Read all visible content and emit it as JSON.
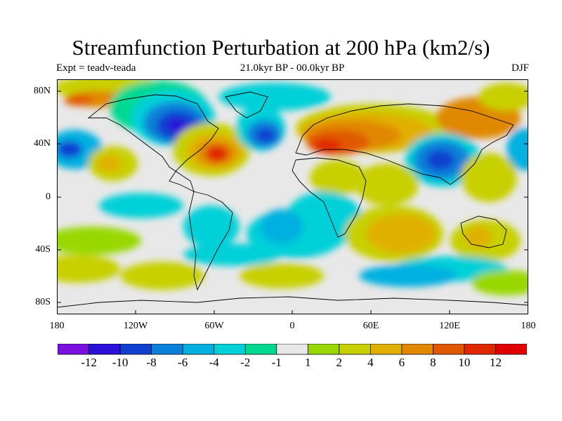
{
  "title": "Streamfunction Perturbation at 200 hPa (km2/s)",
  "expt_label": "Expt = teadv-teada",
  "period_label": "21.0kyr BP - 00.0kyr BP",
  "season_label": "DJF",
  "y_ticks": [
    "80N",
    "40N",
    "0",
    "40S",
    "80S"
  ],
  "x_ticks": [
    "180",
    "120W",
    "60W",
    "0",
    "60E",
    "120E",
    "180"
  ],
  "colorbar": {
    "labels": [
      "-12",
      "-10",
      "-8",
      "-6",
      "-4",
      "-2",
      "-1",
      "1",
      "2",
      "4",
      "6",
      "8",
      "10",
      "12"
    ],
    "colors": [
      "#7a10e0",
      "#2a10d8",
      "#1040d0",
      "#0a80d8",
      "#00b0e0",
      "#00d0d8",
      "#00d890",
      "#e8e8e8",
      "#98d800",
      "#c8d000",
      "#e0b000",
      "#e08800",
      "#e05800",
      "#e02800",
      "#e00000"
    ]
  }
}
